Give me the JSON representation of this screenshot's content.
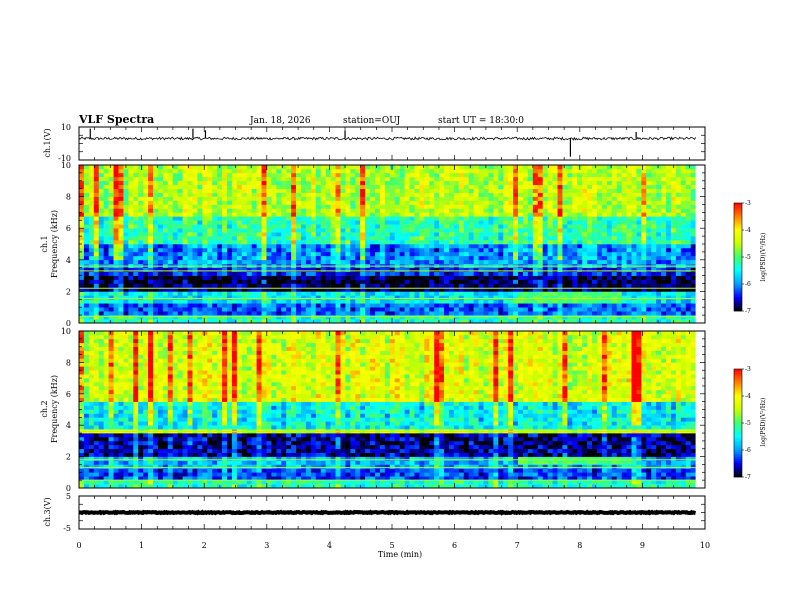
{
  "header": {
    "title": "VLF Spectra",
    "date": "Jan. 18, 2026",
    "station": "station=OUJ",
    "start": "start UT =  18:30:0"
  },
  "chart_data": [
    {
      "type": "line",
      "id": "ch1-waveform",
      "ylabel": "ch.1(V)",
      "ylim": [
        -10,
        10
      ],
      "yticks": [
        10,
        -10
      ],
      "xlim": [
        0,
        10
      ],
      "baseline": 3,
      "noise_amplitude": 0.8,
      "spikes": [
        {
          "t": 0.18,
          "v": 9
        },
        {
          "t": 1.82,
          "v": 9
        },
        {
          "t": 2.02,
          "v": 8
        },
        {
          "t": 4.25,
          "v": 8
        },
        {
          "t": 7.85,
          "v": -8
        },
        {
          "t": 8.9,
          "v": 7
        }
      ]
    },
    {
      "type": "heatmap",
      "id": "ch1-spectrogram",
      "ylabel": "ch.1 Frequency (kHz)",
      "ylabel_line1": "ch.1",
      "ylabel_line2": "Frequency (kHz)",
      "ylim": [
        0,
        10
      ],
      "yticks": [
        0,
        2,
        4,
        6,
        8,
        10
      ],
      "xlim": [
        0,
        9.85
      ],
      "zlim": [
        -7,
        -3
      ],
      "bands": [
        {
          "f": [
            0.0,
            0.6
          ],
          "value": -5.3
        },
        {
          "f": [
            0.6,
            1.2
          ],
          "value": -6.2
        },
        {
          "f": [
            1.2,
            1.9
          ],
          "value": -5.6
        },
        {
          "f": [
            1.9,
            2.9
          ],
          "value": -6.9
        },
        {
          "f": [
            2.9,
            3.6
          ],
          "value": -6.4
        },
        {
          "f": [
            3.6,
            5.0
          ],
          "value": -6.0
        },
        {
          "f": [
            5.0,
            6.8
          ],
          "value": -5.2
        },
        {
          "f": [
            6.8,
            10.0
          ],
          "value": -4.5
        }
      ],
      "lines_khz": [
        0.4,
        1.55,
        2.2,
        3.3,
        3.6
      ],
      "event": {
        "t": [
          7.0,
          8.7
        ],
        "f": [
          1.3,
          2.0
        ],
        "value": -5.0
      },
      "colorbar": {
        "label": "log(PSD)(V²/Hz)",
        "ticks": [
          -3,
          -4,
          -5,
          -6,
          -7
        ]
      }
    },
    {
      "type": "heatmap",
      "id": "ch2-spectrogram",
      "ylabel": "ch.2 Frequency (kHz)",
      "ylabel_line1": "ch.2",
      "ylabel_line2": "Frequency (kHz)",
      "ylim": [
        0,
        10
      ],
      "yticks": [
        0,
        2,
        4,
        6,
        8,
        10
      ],
      "xlim": [
        0,
        9.85
      ],
      "zlim": [
        -7,
        -3
      ],
      "bands": [
        {
          "f": [
            0.0,
            0.5
          ],
          "value": -5.3
        },
        {
          "f": [
            0.5,
            1.3
          ],
          "value": -6.3
        },
        {
          "f": [
            1.3,
            2.0
          ],
          "value": -5.9
        },
        {
          "f": [
            2.0,
            3.4
          ],
          "value": -6.7
        },
        {
          "f": [
            3.4,
            3.8
          ],
          "value": -4.4
        },
        {
          "f": [
            3.8,
            5.5
          ],
          "value": -5.5
        },
        {
          "f": [
            5.5,
            10.0
          ],
          "value": -4.3
        }
      ],
      "lines_khz": [
        0.5,
        1.3,
        1.8,
        3.6
      ],
      "event": {
        "t": [
          7.0,
          8.8
        ],
        "f": [
          1.4,
          2.0
        ],
        "value": -5.0
      },
      "colorbar": {
        "label": "log(PSD)(V²/Hz)",
        "ticks": [
          -3,
          -4,
          -5,
          -6,
          -7
        ]
      }
    },
    {
      "type": "line",
      "id": "ch3-waveform",
      "ylabel": "ch.3(V)",
      "ylim": [
        -5,
        5
      ],
      "yticks": [
        5,
        -5
      ],
      "xlim": [
        0,
        10
      ],
      "baseline": 0,
      "noise_amplitude": 0.15
    }
  ],
  "xaxis": {
    "label": "Time (min)",
    "ticks": [
      0,
      1,
      2,
      3,
      4,
      5,
      6,
      7,
      8,
      9,
      10
    ],
    "tick_labels": [
      "0",
      "1",
      "2",
      "3",
      "4",
      "5",
      "6",
      "7",
      "8",
      "9",
      "10"
    ]
  },
  "colormap": [
    "#000000",
    "#0000ff",
    "#00a0ff",
    "#00ffff",
    "#40ff70",
    "#c8ff00",
    "#ffff00",
    "#ff8000",
    "#ff0000"
  ]
}
